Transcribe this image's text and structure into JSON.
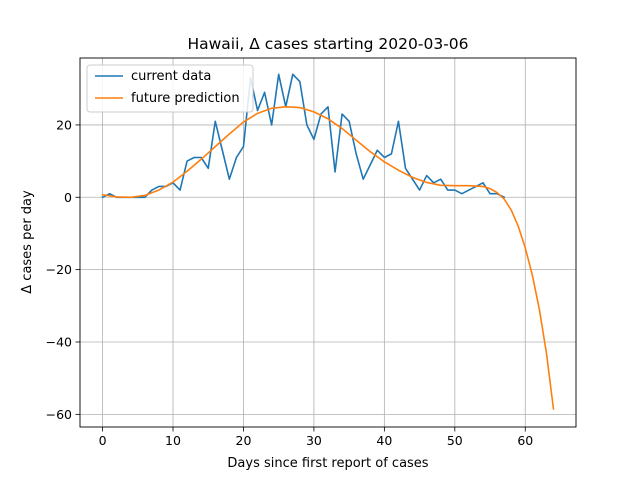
{
  "chart_data": {
    "type": "line",
    "title": "Hawaii, Δ cases starting 2020-03-06",
    "xlabel": "Days since first report of cases",
    "ylabel": "Δ cases per day",
    "xlim": [
      -3.2,
      67.2
    ],
    "ylim": [
      -63.5,
      38.5
    ],
    "xticks": [
      0,
      10,
      20,
      30,
      40,
      50,
      60
    ],
    "yticks": [
      -60,
      -40,
      -20,
      0,
      20
    ],
    "grid": true,
    "legend_position": "top-left",
    "series": [
      {
        "name": "current data",
        "color": "#1f77b4",
        "x": [
          0,
          1,
          2,
          3,
          4,
          5,
          6,
          7,
          8,
          9,
          10,
          11,
          12,
          13,
          14,
          15,
          16,
          17,
          18,
          19,
          20,
          21,
          22,
          23,
          24,
          25,
          26,
          27,
          28,
          29,
          30,
          31,
          32,
          33,
          34,
          35,
          36,
          37,
          38,
          39,
          40,
          41,
          42,
          43,
          44,
          45,
          46,
          47,
          48,
          49,
          50,
          51,
          52,
          53,
          54,
          55,
          56,
          57
        ],
        "y": [
          0,
          1,
          0,
          0,
          0,
          0,
          0,
          2,
          3,
          3,
          4,
          2,
          10,
          11,
          11,
          8,
          21,
          13,
          5,
          11,
          14,
          33,
          24,
          29,
          20,
          34,
          25,
          34,
          32,
          20,
          16,
          23,
          25,
          7,
          23,
          21,
          12,
          5,
          9,
          13,
          11,
          12,
          21,
          8,
          5,
          2,
          6,
          4,
          5,
          2,
          2,
          1,
          2,
          3,
          4,
          1,
          1,
          0
        ]
      },
      {
        "name": "future prediction",
        "color": "#ff7f0e",
        "x": [
          0,
          2,
          4,
          6,
          8,
          10,
          12,
          14,
          16,
          18,
          20,
          22,
          24,
          26,
          28,
          30,
          32,
          34,
          36,
          38,
          40,
          42,
          44,
          46,
          48,
          50,
          52,
          54,
          55,
          56,
          57,
          58,
          59,
          60,
          61,
          62,
          63,
          64
        ],
        "y": [
          0.7,
          0.1,
          0,
          0.5,
          2,
          4.2,
          7.2,
          10.5,
          14,
          17.5,
          20.8,
          23.2,
          24.6,
          25,
          24.8,
          23.6,
          21.7,
          19,
          15.8,
          12.6,
          9.8,
          7.5,
          5.5,
          4.1,
          3.3,
          3.2,
          3.2,
          3.0,
          2.4,
          1.3,
          -0.5,
          -3.5,
          -8,
          -14,
          -21.5,
          -31,
          -43,
          -58.5
        ]
      }
    ]
  }
}
